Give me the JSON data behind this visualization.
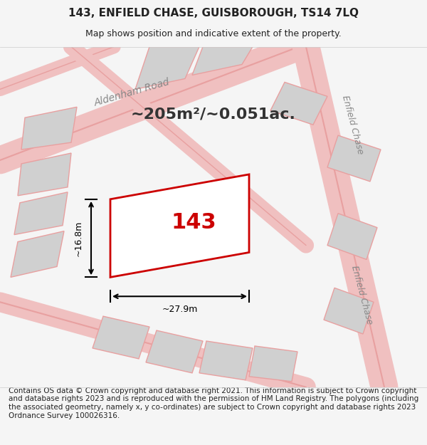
{
  "title": "143, ENFIELD CHASE, GUISBOROUGH, TS14 7LQ",
  "subtitle": "Map shows position and indicative extent of the property.",
  "footer": "Contains OS data © Crown copyright and database right 2021. This information is subject to Crown copyright and database rights 2023 and is reproduced with the permission of HM Land Registry. The polygons (including the associated geometry, namely x, y co-ordinates) are subject to Crown copyright and database rights 2023 Ordnance Survey 100026316.",
  "area_text": "~205m²/~0.051ac.",
  "property_label": "143",
  "dim_width": "~27.9m",
  "dim_height": "~16.8m",
  "bg_color": "#f5f5f5",
  "map_bg": "#ffffff",
  "road_color": "#e8a0a0",
  "plot_outline_color": "#cc0000",
  "plot_fill_color": "#ffffff",
  "building_fill": "#d0d0d0",
  "text_color": "#222222",
  "title_fontsize": 11,
  "subtitle_fontsize": 9,
  "footer_fontsize": 7.5,
  "map_xlim": [
    0,
    1
  ],
  "map_ylim": [
    0,
    1
  ]
}
